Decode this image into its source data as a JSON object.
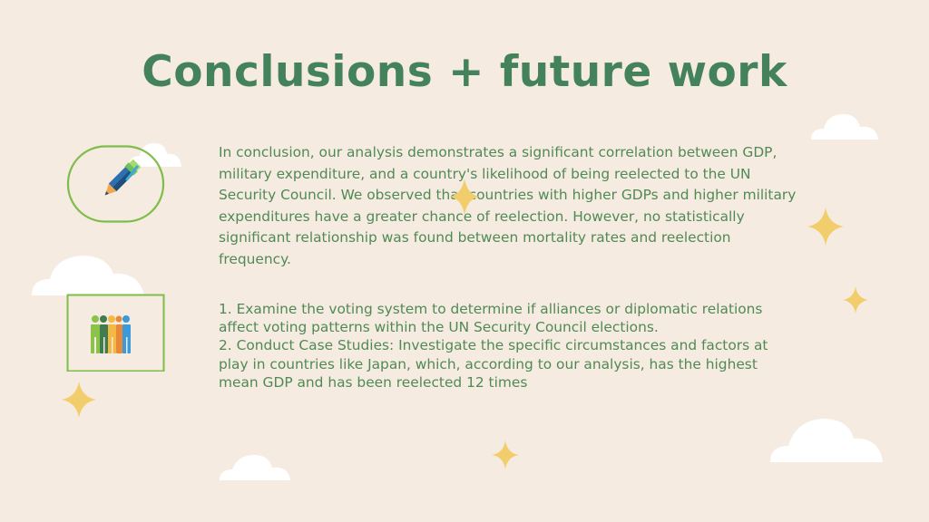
{
  "slide": {
    "title": "Conclusions + future work",
    "conclusion_text": "In conclusion, our analysis demonstrates a significant correlation between GDP, military expenditure, and a country's likelihood of being reelected to the UN Security Council. We observed that countries with higher GDPs and higher military expenditures have a greater chance of reelection. However, no statistically significant relationship was found between mortality rates and reelection frequency.",
    "future_work": [
      "1. Examine the voting system to determine if alliances or diplomatic relations affect voting patterns within the UN Security Council elections.",
      "2. Conduct Case Studies: Investigate the specific circumstances and factors at play in countries like Japan, which, according to our analysis, has the highest mean GDP and has been reelected 12 times"
    ]
  },
  "colors": {
    "background": "#f6ebe0",
    "title": "#44825b",
    "body_text": "#4f8a55",
    "frame_border": "#7dbd4a",
    "sparkle": "#f2cd6b",
    "cloud": "#ffffff"
  },
  "icons": [
    "pencil-icon",
    "people-icon",
    "sparkle-icon",
    "cloud-icon"
  ]
}
